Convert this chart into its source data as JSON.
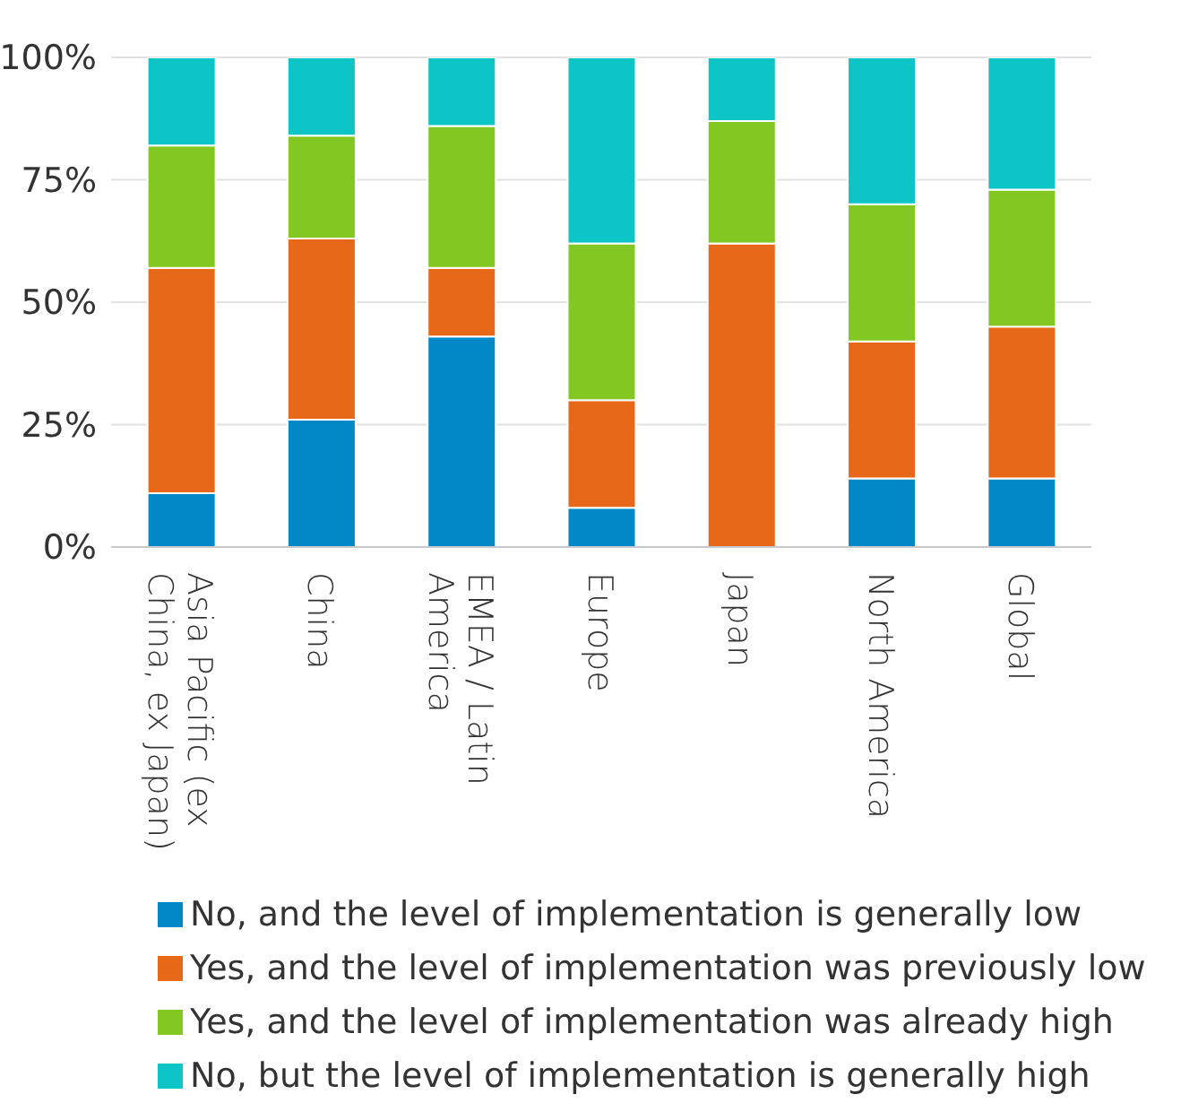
{
  "chart_data": {
    "type": "bar",
    "stacked": true,
    "categories": [
      "Asia Pacific (ex China, ex Japan)",
      "China",
      "EMEA / Latin America",
      "Europe",
      "Japan",
      "North America",
      "Global"
    ],
    "series": [
      {
        "name": "No, and the level of implementation is generally low",
        "color": "#0288c7",
        "values": [
          11,
          26,
          43,
          8,
          0,
          14,
          14
        ]
      },
      {
        "name": "Yes, and the level of implementation was previously low",
        "color": "#e8681a",
        "values": [
          46,
          37,
          14,
          22,
          62,
          28,
          31
        ]
      },
      {
        "name": "Yes, and the level of implementation was already high",
        "color": "#83c723",
        "values": [
          25,
          21,
          29,
          32,
          25,
          28,
          28
        ]
      },
      {
        "name": "No, but the level of implementation is generally high",
        "color": "#0dc4c6",
        "values": [
          18,
          16,
          14,
          38,
          13,
          30,
          27
        ]
      }
    ],
    "ylim": [
      0,
      100
    ],
    "yticks": [
      {
        "value": 0,
        "label": "0%"
      },
      {
        "value": 25,
        "label": "25%"
      },
      {
        "value": 50,
        "label": "50%"
      },
      {
        "value": 75,
        "label": "75%"
      },
      {
        "value": 100,
        "label": "100%"
      }
    ],
    "grid": "y",
    "legend": "bottom"
  }
}
